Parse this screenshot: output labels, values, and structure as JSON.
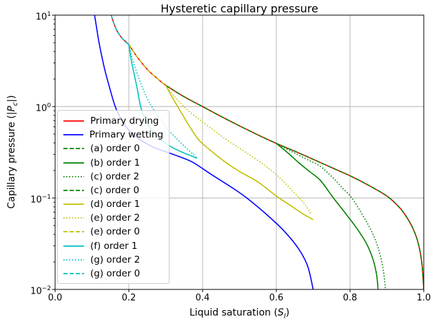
{
  "title": "Hysteretic capillary pressure",
  "axes": {
    "xlabel_parts": {
      "pre": "Liquid saturation (",
      "sym": "S",
      "sub": "l",
      "post": ")"
    },
    "ylabel_parts": {
      "pre": "Capillary pressure (|",
      "sym": "P",
      "sub": "c",
      "post": "|)"
    },
    "x_ticks": [
      {
        "value": 0.0,
        "label": "0.0"
      },
      {
        "value": 0.2,
        "label": "0.2"
      },
      {
        "value": 0.4,
        "label": "0.4"
      },
      {
        "value": 0.6,
        "label": "0.6"
      },
      {
        "value": 0.8,
        "label": "0.8"
      },
      {
        "value": 1.0,
        "label": "1.0"
      }
    ],
    "y_ticks": [
      {
        "value": 10,
        "base": "10",
        "exp": "1"
      },
      {
        "value": 1,
        "base": "10",
        "exp": "0"
      },
      {
        "value": 0.1,
        "base": "10",
        "exp": "−1"
      },
      {
        "value": 0.01,
        "base": "10",
        "exp": "−2"
      }
    ],
    "grid_color": "#b0b0b0",
    "spine_color": "#000000"
  },
  "chart_data": {
    "type": "line",
    "title": "Hysteretic capillary pressure",
    "xlabel": "Liquid saturation (S_l)",
    "ylabel": "Capillary pressure (|P_c|)",
    "xlim": [
      0.0,
      1.0
    ],
    "ylim": [
      0.01,
      10
    ],
    "yscale": "log",
    "grid": true,
    "legend_position": "center left",
    "series": [
      {
        "name": "primary-drying",
        "legend": "Primary drying",
        "color": "#ff0000",
        "linestyle": "solid",
        "points": [
          [
            0.152,
            10
          ],
          [
            0.16,
            8
          ],
          [
            0.17,
            6.5
          ],
          [
            0.185,
            5.4
          ],
          [
            0.2,
            4.75
          ],
          [
            0.22,
            3.6
          ],
          [
            0.25,
            2.55
          ],
          [
            0.28,
            1.98
          ],
          [
            0.3,
            1.71
          ],
          [
            0.35,
            1.28
          ],
          [
            0.4,
            1.0
          ],
          [
            0.45,
            0.78
          ],
          [
            0.5,
            0.615
          ],
          [
            0.55,
            0.49
          ],
          [
            0.6,
            0.395
          ],
          [
            0.65,
            0.325
          ],
          [
            0.7,
            0.265
          ],
          [
            0.75,
            0.215
          ],
          [
            0.8,
            0.175
          ],
          [
            0.85,
            0.138
          ],
          [
            0.9,
            0.105
          ],
          [
            0.93,
            0.082
          ],
          [
            0.95,
            0.065
          ],
          [
            0.97,
            0.047
          ],
          [
            0.985,
            0.032
          ],
          [
            0.995,
            0.019
          ],
          [
            1.0,
            0.01
          ]
        ]
      },
      {
        "name": "primary-wetting",
        "legend": "Primary wetting",
        "color": "#0000ff",
        "linestyle": "solid",
        "points": [
          [
            0.107,
            10
          ],
          [
            0.112,
            7.5
          ],
          [
            0.118,
            5.3
          ],
          [
            0.125,
            3.8
          ],
          [
            0.135,
            2.5
          ],
          [
            0.148,
            1.6
          ],
          [
            0.163,
            1.0
          ],
          [
            0.18,
            0.72
          ],
          [
            0.2,
            0.55
          ],
          [
            0.23,
            0.435
          ],
          [
            0.27,
            0.355
          ],
          [
            0.32,
            0.3
          ],
          [
            0.37,
            0.25
          ],
          [
            0.42,
            0.185
          ],
          [
            0.45,
            0.155
          ],
          [
            0.49,
            0.122
          ],
          [
            0.52,
            0.1
          ],
          [
            0.57,
            0.068
          ],
          [
            0.62,
            0.044
          ],
          [
            0.66,
            0.028
          ],
          [
            0.685,
            0.018
          ],
          [
            0.7,
            0.01
          ]
        ]
      },
      {
        "name": "a-order-0",
        "legend": "(a) order 0",
        "color": "#008000",
        "linestyle": "dashed",
        "points": [
          [
            0.6,
            0.395
          ],
          [
            0.65,
            0.325
          ],
          [
            0.7,
            0.265
          ],
          [
            0.75,
            0.215
          ],
          [
            0.8,
            0.175
          ],
          [
            0.85,
            0.138
          ],
          [
            0.9,
            0.105
          ],
          [
            0.93,
            0.082
          ],
          [
            0.95,
            0.065
          ],
          [
            0.97,
            0.047
          ],
          [
            0.985,
            0.032
          ],
          [
            0.995,
            0.019
          ],
          [
            1.0,
            0.01
          ]
        ]
      },
      {
        "name": "b-order-1",
        "legend": "(b) order 1",
        "color": "#008000",
        "linestyle": "solid",
        "points": [
          [
            0.6,
            0.395
          ],
          [
            0.63,
            0.315
          ],
          [
            0.66,
            0.245
          ],
          [
            0.69,
            0.195
          ],
          [
            0.72,
            0.155
          ],
          [
            0.755,
            0.1
          ],
          [
            0.79,
            0.066
          ],
          [
            0.82,
            0.0455
          ],
          [
            0.845,
            0.0315
          ],
          [
            0.862,
            0.0215
          ],
          [
            0.872,
            0.0145
          ],
          [
            0.876,
            0.01
          ]
        ]
      },
      {
        "name": "c-order-2",
        "legend": "(c) order 2",
        "color": "#008000",
        "linestyle": "dotted",
        "points": [
          [
            0.6,
            0.395
          ],
          [
            0.64,
            0.325
          ],
          [
            0.68,
            0.268
          ],
          [
            0.717,
            0.225
          ],
          [
            0.75,
            0.172
          ],
          [
            0.78,
            0.128
          ],
          [
            0.805,
            0.1
          ],
          [
            0.835,
            0.064
          ],
          [
            0.86,
            0.042
          ],
          [
            0.878,
            0.027
          ],
          [
            0.89,
            0.0165
          ],
          [
            0.896,
            0.01
          ]
        ]
      },
      {
        "name": "c-order-0",
        "legend": "(c) order 0",
        "color": "#008000",
        "linestyle": "dashed",
        "points": [
          [
            0.3,
            1.71
          ],
          [
            0.35,
            1.28
          ],
          [
            0.4,
            1.0
          ],
          [
            0.45,
            0.78
          ],
          [
            0.5,
            0.615
          ],
          [
            0.55,
            0.49
          ],
          [
            0.6,
            0.395
          ]
        ]
      },
      {
        "name": "d-order-1",
        "legend": "(d) order 1",
        "color": "#bfbf00",
        "linestyle": "solid",
        "points": [
          [
            0.3,
            1.71
          ],
          [
            0.32,
            1.22
          ],
          [
            0.345,
            0.82
          ],
          [
            0.37,
            0.56
          ],
          [
            0.39,
            0.43
          ],
          [
            0.42,
            0.335
          ],
          [
            0.46,
            0.25
          ],
          [
            0.5,
            0.195
          ],
          [
            0.55,
            0.15
          ],
          [
            0.6,
            0.105
          ],
          [
            0.64,
            0.082
          ],
          [
            0.67,
            0.068
          ],
          [
            0.7,
            0.058
          ]
        ]
      },
      {
        "name": "e-order-2",
        "legend": "(e) order 2",
        "color": "#bfbf00",
        "linestyle": "dotted",
        "points": [
          [
            0.3,
            1.71
          ],
          [
            0.325,
            1.27
          ],
          [
            0.355,
            0.95
          ],
          [
            0.39,
            0.73
          ],
          [
            0.43,
            0.55
          ],
          [
            0.47,
            0.42
          ],
          [
            0.52,
            0.31
          ],
          [
            0.57,
            0.225
          ],
          [
            0.61,
            0.165
          ],
          [
            0.645,
            0.118
          ],
          [
            0.665,
            0.098
          ],
          [
            0.682,
            0.08
          ],
          [
            0.695,
            0.066
          ]
        ]
      },
      {
        "name": "e-order-0",
        "legend": "(e) order 0",
        "color": "#bfbf00",
        "linestyle": "dashed",
        "points": [
          [
            0.2,
            4.75
          ],
          [
            0.22,
            3.6
          ],
          [
            0.25,
            2.55
          ],
          [
            0.28,
            1.98
          ],
          [
            0.3,
            1.71
          ]
        ]
      },
      {
        "name": "f-order-1",
        "legend": "(f) order 1",
        "color": "#00bfbf",
        "linestyle": "solid",
        "points": [
          [
            0.2,
            4.75
          ],
          [
            0.206,
            3.3
          ],
          [
            0.214,
            2.3
          ],
          [
            0.223,
            1.55
          ],
          [
            0.232,
            1.0
          ],
          [
            0.245,
            0.72
          ],
          [
            0.26,
            0.565
          ],
          [
            0.28,
            0.46
          ],
          [
            0.3,
            0.395
          ],
          [
            0.325,
            0.345
          ],
          [
            0.35,
            0.31
          ],
          [
            0.37,
            0.288
          ],
          [
            0.385,
            0.272
          ]
        ]
      },
      {
        "name": "g-order-2",
        "legend": "(g) order 2",
        "color": "#00bfbf",
        "linestyle": "dotted",
        "points": [
          [
            0.2,
            4.75
          ],
          [
            0.212,
            3.1
          ],
          [
            0.228,
            2.0
          ],
          [
            0.246,
            1.32
          ],
          [
            0.262,
            1.0
          ],
          [
            0.285,
            0.72
          ],
          [
            0.31,
            0.54
          ],
          [
            0.335,
            0.425
          ],
          [
            0.358,
            0.345
          ],
          [
            0.375,
            0.3
          ],
          [
            0.385,
            0.272
          ]
        ]
      },
      {
        "name": "g-order-0",
        "legend": "(g) order 0",
        "color": "#00bfbf",
        "linestyle": "dashed",
        "points": [
          [
            0.152,
            10
          ],
          [
            0.16,
            8
          ],
          [
            0.17,
            6.5
          ],
          [
            0.185,
            5.4
          ],
          [
            0.2,
            4.75
          ]
        ]
      }
    ]
  }
}
